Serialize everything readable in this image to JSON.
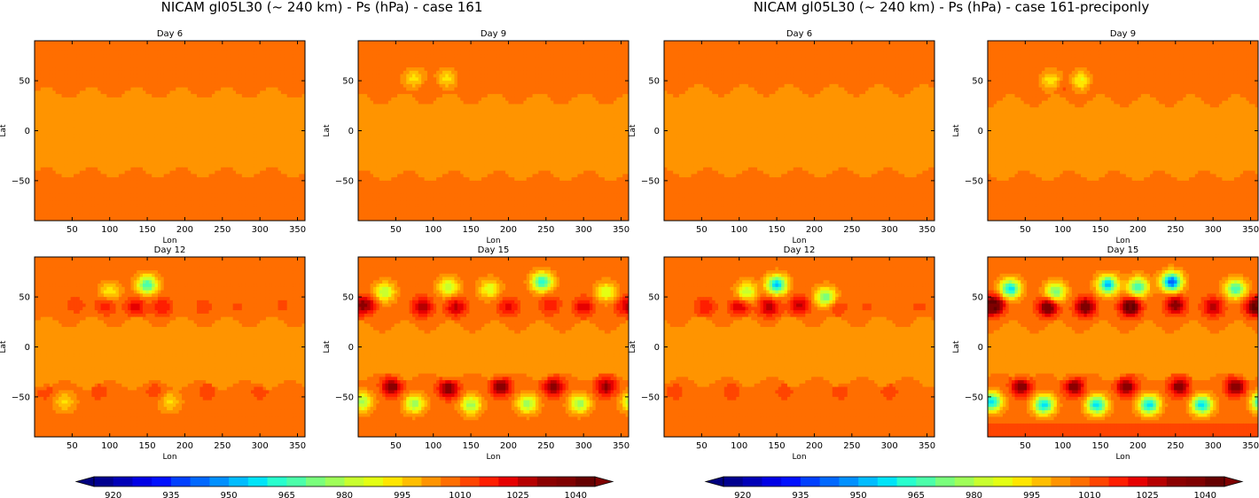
{
  "figure": {
    "suptitles": [
      "NICAM gl05L30 (~ 240 km) - Ps (hPa) - case 161",
      "NICAM gl05L30 (~ 240 km) - Ps (hPa) - case 161-preciponly"
    ]
  },
  "chart_data": [
    {
      "type": "heatmap",
      "title": "Day 6",
      "case": "case 161",
      "xlabel": "Lon",
      "ylabel": "Lat",
      "xlim": [
        0,
        360
      ],
      "ylim": [
        -90,
        90
      ],
      "xticks": [
        50,
        100,
        150,
        200,
        250,
        300,
        350
      ],
      "yticks": [
        50,
        0,
        -50
      ],
      "regime": {
        "storm": 0.0,
        "south_band_lat": -42,
        "north_band_lat": 38
      },
      "features": []
    },
    {
      "type": "heatmap",
      "title": "Day 9",
      "case": "case 161",
      "xlabel": "Lon",
      "ylabel": "Lat",
      "xlim": [
        0,
        360
      ],
      "ylim": [
        -90,
        90
      ],
      "xticks": [
        50,
        100,
        150,
        200,
        250,
        300,
        350
      ],
      "yticks": [
        50,
        0,
        -50
      ],
      "regime": {
        "storm": 0.18,
        "south_band_lat": -45,
        "north_band_lat": 32
      },
      "features": [
        {
          "lon": 95,
          "lat": 45,
          "value": 1005
        },
        {
          "lon": 140,
          "lat": 52,
          "value": 1005
        },
        {
          "lon": 75,
          "lat": 52,
          "value": 988
        },
        {
          "lon": 118,
          "lat": 52,
          "value": 988
        }
      ]
    },
    {
      "type": "heatmap",
      "title": "Day 6",
      "case": "case 161-preciponly",
      "xlabel": "Lon",
      "ylabel": "Lat",
      "xlim": [
        0,
        360
      ],
      "ylim": [
        -90,
        90
      ],
      "xticks": [
        50,
        100,
        150,
        200,
        250,
        300,
        350
      ],
      "yticks": [
        50,
        0,
        -50
      ],
      "regime": {
        "storm": 0.0,
        "south_band_lat": -42,
        "north_band_lat": 40
      },
      "features": []
    },
    {
      "type": "heatmap",
      "title": "Day 9",
      "case": "case 161-preciponly",
      "xlabel": "Lon",
      "ylabel": "Lat",
      "xlim": [
        0,
        360
      ],
      "ylim": [
        -90,
        90
      ],
      "xticks": [
        50,
        100,
        150,
        200,
        250,
        300,
        350
      ],
      "yticks": [
        50,
        0,
        -50
      ],
      "regime": {
        "storm": 0.22,
        "south_band_lat": -45,
        "north_band_lat": 30
      },
      "features": [
        {
          "lon": 100,
          "lat": 45,
          "value": 1008
        },
        {
          "lon": 140,
          "lat": 48,
          "value": 1006
        },
        {
          "lon": 85,
          "lat": 50,
          "value": 985
        },
        {
          "lon": 125,
          "lat": 50,
          "value": 983
        }
      ]
    },
    {
      "type": "heatmap",
      "title": "Day 12",
      "case": "case 161",
      "xlabel": "Lon",
      "ylabel": "Lat",
      "xlim": [
        0,
        360
      ],
      "ylim": [
        -90,
        90
      ],
      "xticks": [
        50,
        100,
        150,
        200,
        250,
        300,
        350
      ],
      "yticks": [
        50,
        0,
        -50
      ],
      "regime": {
        "storm": 0.55,
        "south_band_lat": -38,
        "north_band_lat": 25
      },
      "features": [
        {
          "lon": 150,
          "lat": 62,
          "value": 960
        },
        {
          "lon": 100,
          "lat": 55,
          "value": 985
        },
        {
          "lon": 95,
          "lat": 42,
          "value": 1015
        },
        {
          "lon": 135,
          "lat": 40,
          "value": 1018
        },
        {
          "lon": 170,
          "lat": 40,
          "value": 1015
        },
        {
          "lon": 55,
          "lat": 42,
          "value": 1008
        },
        {
          "lon": 225,
          "lat": 40,
          "value": 1008
        },
        {
          "lon": 270,
          "lat": 40,
          "value": 1006
        },
        {
          "lon": 330,
          "lat": 42,
          "value": 1006
        },
        {
          "lon": 15,
          "lat": -45,
          "value": 1008
        },
        {
          "lon": 85,
          "lat": -45,
          "value": 1008
        },
        {
          "lon": 160,
          "lat": -45,
          "value": 1008
        },
        {
          "lon": 230,
          "lat": -45,
          "value": 1008
        },
        {
          "lon": 300,
          "lat": -45,
          "value": 1008
        },
        {
          "lon": 40,
          "lat": -55,
          "value": 988
        },
        {
          "lon": 180,
          "lat": -55,
          "value": 988
        }
      ]
    },
    {
      "type": "heatmap",
      "title": "Day 15",
      "case": "case 161",
      "xlabel": "Lon",
      "ylabel": "Lat",
      "xlim": [
        0,
        360
      ],
      "ylim": [
        -90,
        90
      ],
      "xticks": [
        50,
        100,
        150,
        200,
        250,
        300,
        350
      ],
      "yticks": [
        50,
        0,
        -50
      ],
      "regime": {
        "storm": 0.75,
        "south_band_lat": -30,
        "north_band_lat": 20
      },
      "features": [
        {
          "lon": 10,
          "lat": 42,
          "value": 1025
        },
        {
          "lon": 85,
          "lat": 40,
          "value": 1025
        },
        {
          "lon": 130,
          "lat": 40,
          "value": 1022
        },
        {
          "lon": 200,
          "lat": 40,
          "value": 1018
        },
        {
          "lon": 255,
          "lat": 42,
          "value": 1015
        },
        {
          "lon": 300,
          "lat": 40,
          "value": 1020
        },
        {
          "lon": 355,
          "lat": 40,
          "value": 1015
        },
        {
          "lon": 245,
          "lat": 65,
          "value": 955
        },
        {
          "lon": 35,
          "lat": 55,
          "value": 975
        },
        {
          "lon": 120,
          "lat": 60,
          "value": 975
        },
        {
          "lon": 175,
          "lat": 58,
          "value": 980
        },
        {
          "lon": 330,
          "lat": 55,
          "value": 980
        },
        {
          "lon": 45,
          "lat": -40,
          "value": 1030
        },
        {
          "lon": 120,
          "lat": -42,
          "value": 1030
        },
        {
          "lon": 190,
          "lat": -40,
          "value": 1030
        },
        {
          "lon": 260,
          "lat": -40,
          "value": 1030
        },
        {
          "lon": 330,
          "lat": -40,
          "value": 1028
        },
        {
          "lon": 5,
          "lat": -55,
          "value": 972
        },
        {
          "lon": 75,
          "lat": -57,
          "value": 972
        },
        {
          "lon": 150,
          "lat": -58,
          "value": 972
        },
        {
          "lon": 225,
          "lat": -57,
          "value": 972
        },
        {
          "lon": 295,
          "lat": -57,
          "value": 972
        }
      ]
    },
    {
      "type": "heatmap",
      "title": "Day 12",
      "case": "case 161-preciponly",
      "xlabel": "Lon",
      "ylabel": "Lat",
      "xlim": [
        0,
        360
      ],
      "ylim": [
        -90,
        90
      ],
      "xticks": [
        50,
        100,
        150,
        200,
        250,
        300,
        350
      ],
      "yticks": [
        50,
        0,
        -50
      ],
      "regime": {
        "storm": 0.55,
        "south_band_lat": -35,
        "north_band_lat": 25
      },
      "features": [
        {
          "lon": 150,
          "lat": 62,
          "value": 948
        },
        {
          "lon": 215,
          "lat": 50,
          "value": 965
        },
        {
          "lon": 110,
          "lat": 55,
          "value": 975
        },
        {
          "lon": 55,
          "lat": 40,
          "value": 1015
        },
        {
          "lon": 100,
          "lat": 40,
          "value": 1020
        },
        {
          "lon": 140,
          "lat": 40,
          "value": 1025
        },
        {
          "lon": 180,
          "lat": 42,
          "value": 1022
        },
        {
          "lon": 230,
          "lat": 40,
          "value": 1010
        },
        {
          "lon": 270,
          "lat": 40,
          "value": 1006
        },
        {
          "lon": 340,
          "lat": 40,
          "value": 1006
        },
        {
          "lon": 15,
          "lat": -45,
          "value": 1008
        },
        {
          "lon": 90,
          "lat": -45,
          "value": 1008
        },
        {
          "lon": 160,
          "lat": -45,
          "value": 1008
        },
        {
          "lon": 235,
          "lat": -45,
          "value": 1008
        },
        {
          "lon": 300,
          "lat": -45,
          "value": 1008
        }
      ]
    },
    {
      "type": "heatmap",
      "title": "Day 15",
      "case": "case 161-preciponly",
      "xlabel": "Lon",
      "ylabel": "Lat",
      "xlim": [
        0,
        360
      ],
      "ylim": [
        -90,
        90
      ],
      "xticks": [
        50,
        100,
        150,
        200,
        250,
        300,
        350
      ],
      "yticks": [
        50,
        0,
        -50
      ],
      "regime": {
        "storm": 1.0,
        "south_band_lat": -30,
        "north_band_lat": 20
      },
      "features": [
        {
          "lon": 10,
          "lat": 42,
          "value": 1035
        },
        {
          "lon": 80,
          "lat": 40,
          "value": 1035
        },
        {
          "lon": 130,
          "lat": 40,
          "value": 1035
        },
        {
          "lon": 190,
          "lat": 40,
          "value": 1042
        },
        {
          "lon": 250,
          "lat": 42,
          "value": 1030
        },
        {
          "lon": 300,
          "lat": 40,
          "value": 1025
        },
        {
          "lon": 355,
          "lat": 40,
          "value": 1030
        },
        {
          "lon": 245,
          "lat": 65,
          "value": 935
        },
        {
          "lon": 30,
          "lat": 58,
          "value": 950
        },
        {
          "lon": 90,
          "lat": 55,
          "value": 965
        },
        {
          "lon": 160,
          "lat": 62,
          "value": 948
        },
        {
          "lon": 200,
          "lat": 60,
          "value": 960
        },
        {
          "lon": 330,
          "lat": 58,
          "value": 960
        },
        {
          "lon": 45,
          "lat": -40,
          "value": 1030
        },
        {
          "lon": 115,
          "lat": -40,
          "value": 1030
        },
        {
          "lon": 185,
          "lat": -40,
          "value": 1030
        },
        {
          "lon": 255,
          "lat": -40,
          "value": 1030
        },
        {
          "lon": 330,
          "lat": -40,
          "value": 1030
        },
        {
          "lon": 5,
          "lat": -55,
          "value": 950
        },
        {
          "lon": 75,
          "lat": -58,
          "value": 950
        },
        {
          "lon": 145,
          "lat": -58,
          "value": 950
        },
        {
          "lon": 215,
          "lat": -58,
          "value": 950
        },
        {
          "lon": 285,
          "lat": -58,
          "value": 950
        }
      ]
    }
  ],
  "colorbar": {
    "levels": [
      915,
      920,
      925,
      930,
      935,
      940,
      945,
      950,
      955,
      960,
      965,
      970,
      975,
      980,
      985,
      990,
      995,
      1000,
      1005,
      1010,
      1015,
      1020,
      1025,
      1030,
      1035,
      1040,
      1045
    ],
    "ticks": [
      920,
      935,
      950,
      965,
      980,
      995,
      1010,
      1025,
      1040
    ],
    "under_color": "#00007f",
    "over_color": "#7f0000",
    "colors": [
      "#00008f",
      "#0000b7",
      "#0000e5",
      "#0010ff",
      "#0040ff",
      "#0068ff",
      "#0090ff",
      "#00bcff",
      "#00e4f8",
      "#28ffce",
      "#4cffaa",
      "#7aff7c",
      "#9fff58",
      "#c9ff2e",
      "#e4ff13",
      "#ffe600",
      "#ffbe00",
      "#ff9400",
      "#ff6e00",
      "#ff4500",
      "#ff1e00",
      "#e60000",
      "#b60000",
      "#8b0000",
      "#7f0000",
      "#650000"
    ]
  }
}
